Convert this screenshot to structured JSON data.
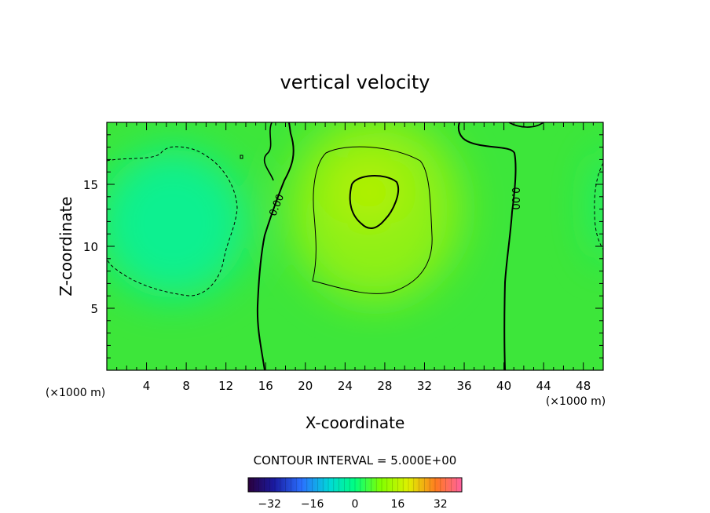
{
  "chart_data": {
    "type": "heatmap",
    "title": "vertical velocity",
    "xlabel": "X-coordinate",
    "ylabel": "Z-coordinate",
    "x_unit_label": "(×1000 m)",
    "x_unit_label_right": "(×1000 m)",
    "xlim": [
      0,
      50
    ],
    "ylim": [
      0,
      20
    ],
    "x_ticks": [
      4,
      8,
      12,
      16,
      20,
      24,
      28,
      32,
      36,
      40,
      44,
      48
    ],
    "y_ticks": [
      5,
      10,
      15
    ],
    "contour_interval_text": "CONTOUR INTERVAL = 5.000E+00",
    "contour_labels": [
      "0.00",
      "0.00"
    ],
    "colorbar": {
      "range": [
        -40,
        40
      ],
      "ticks": [
        -32,
        -16,
        0,
        16,
        32
      ],
      "tick_labels": [
        "−32",
        "−16",
        "0",
        "16",
        "32"
      ],
      "colormap": "rainbow"
    },
    "field_features": [
      {
        "kind": "updraft max",
        "x": 26.5,
        "z": 13.5,
        "value": 11
      },
      {
        "kind": "downdraft min",
        "x": 7,
        "z": 13,
        "value": -6
      },
      {
        "kind": "downdraft min",
        "x": 50,
        "z": 11,
        "value": -5
      }
    ],
    "colors": {
      "background": "#ffffff",
      "axis": "#000000"
    }
  }
}
